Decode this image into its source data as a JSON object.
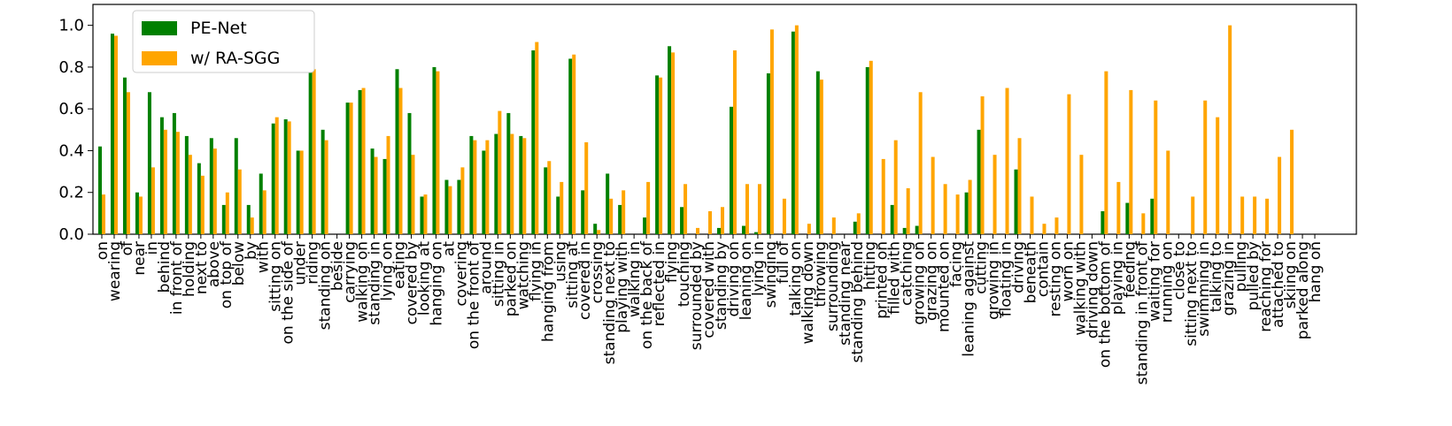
{
  "chart_data": {
    "type": "bar",
    "categories": [
      "on",
      "wearing",
      "of",
      "near",
      "in",
      "behind",
      "in front of",
      "holding",
      "next to",
      "above",
      "on top of",
      "below",
      "by",
      "with",
      "sitting on",
      "on the side of",
      "under",
      "riding",
      "standing on",
      "beside",
      "carrying",
      "walking on",
      "standing in",
      "lying on",
      "eating",
      "covered by",
      "looking at",
      "hanging on",
      "at",
      "covering",
      "on the front of",
      "around",
      "sitting in",
      "parked on",
      "watching",
      "flying in",
      "hanging from",
      "using",
      "sitting at",
      "covered in",
      "crossing",
      "standing next to",
      "playing with",
      "walking in",
      "on the back of",
      "reflected in",
      "flying",
      "touching",
      "surrounded by",
      "covered with",
      "standing by",
      "driving on",
      "leaning on",
      "lying in",
      "swinging",
      "full of",
      "talking on",
      "walking down",
      "throwing",
      "surrounding",
      "standing near",
      "standing behind",
      "hitting",
      "printed on",
      "filled with",
      "catching",
      "growing on",
      "grazing on",
      "mounted on",
      "facing",
      "leaning against",
      "cutting",
      "growing in",
      "floating in",
      "driving",
      "beneath",
      "contain",
      "resting on",
      "worn on",
      "walking with",
      "driving down",
      "on the bottom of",
      "playing in",
      "feeding",
      "standing in front of",
      "waiting for",
      "running on",
      "close to",
      "sitting next to",
      "swimming in",
      "talking to",
      "grazing in",
      "pulling",
      "pulled by",
      "reaching for",
      "attached to",
      "skiing on",
      "parked along",
      "hang on"
    ],
    "series": [
      {
        "name": "PE-Net",
        "color": "#008000",
        "values": [
          0.42,
          0.96,
          0.75,
          0.2,
          0.68,
          0.56,
          0.58,
          0.47,
          0.34,
          0.46,
          0.14,
          0.46,
          0.14,
          0.29,
          0.53,
          0.55,
          0.4,
          0.81,
          0.5,
          0,
          0.63,
          0.69,
          0.41,
          0.36,
          0.79,
          0.58,
          0.18,
          0.8,
          0.26,
          0.26,
          0.47,
          0.4,
          0.48,
          0.58,
          0.47,
          0.88,
          0.32,
          0.18,
          0.84,
          0.21,
          0.05,
          0.29,
          0.14,
          0,
          0.08,
          0.76,
          0.9,
          0.13,
          0,
          0,
          0.03,
          0.61,
          0.04,
          0.01,
          0.77,
          0,
          0.97,
          0,
          0.78,
          0,
          0,
          0.06,
          0.8,
          0,
          0.14,
          0.03,
          0.04,
          0,
          0,
          0,
          0.2,
          0.5,
          0,
          0,
          0.31,
          0,
          0,
          0,
          0,
          0,
          0,
          0.11,
          0,
          0.15,
          0,
          0.17,
          0,
          0,
          0,
          0,
          0,
          0,
          0,
          0,
          0,
          0,
          0,
          0,
          0
        ]
      },
      {
        "name": "w/ RA-SGG",
        "color": "#ffa500",
        "values": [
          0.19,
          0.95,
          0.68,
          0.18,
          0.32,
          0.5,
          0.49,
          0.38,
          0.28,
          0.41,
          0.2,
          0.31,
          0.08,
          0.21,
          0.56,
          0.54,
          0.4,
          0.79,
          0.45,
          0,
          0.63,
          0.7,
          0.37,
          0.47,
          0.7,
          0.38,
          0.19,
          0.78,
          0.23,
          0.32,
          0.45,
          0.45,
          0.59,
          0.48,
          0.46,
          0.92,
          0.35,
          0.25,
          0.86,
          0.44,
          0.02,
          0.17,
          0.21,
          0,
          0.25,
          0.75,
          0.87,
          0.24,
          0.03,
          0.11,
          0.13,
          0.88,
          0.24,
          0.24,
          0.98,
          0.17,
          1.0,
          0.05,
          0.74,
          0.08,
          0,
          0.1,
          0.83,
          0.36,
          0.45,
          0.22,
          0.68,
          0.37,
          0.24,
          0.19,
          0.26,
          0.66,
          0.38,
          0.7,
          0.46,
          0.18,
          0.05,
          0.08,
          0.67,
          0.38,
          0,
          0.78,
          0.25,
          0.69,
          0.1,
          0.64,
          0.4,
          0,
          0.18,
          0.64,
          0.56,
          1.0,
          0.18,
          0.18,
          0.17,
          0.37,
          0.5,
          0,
          0
        ]
      }
    ],
    "ylim": [
      0,
      1.1
    ],
    "yticks": [
      {
        "value": 0,
        "label": "0.0"
      },
      {
        "value": 0.2,
        "label": "0.2"
      },
      {
        "value": 0.4,
        "label": "0.4"
      },
      {
        "value": 0.6,
        "label": "0.6"
      },
      {
        "value": 0.8,
        "label": "0.8"
      },
      {
        "value": 1.0,
        "label": "1.0"
      }
    ],
    "legend": "upper left"
  }
}
